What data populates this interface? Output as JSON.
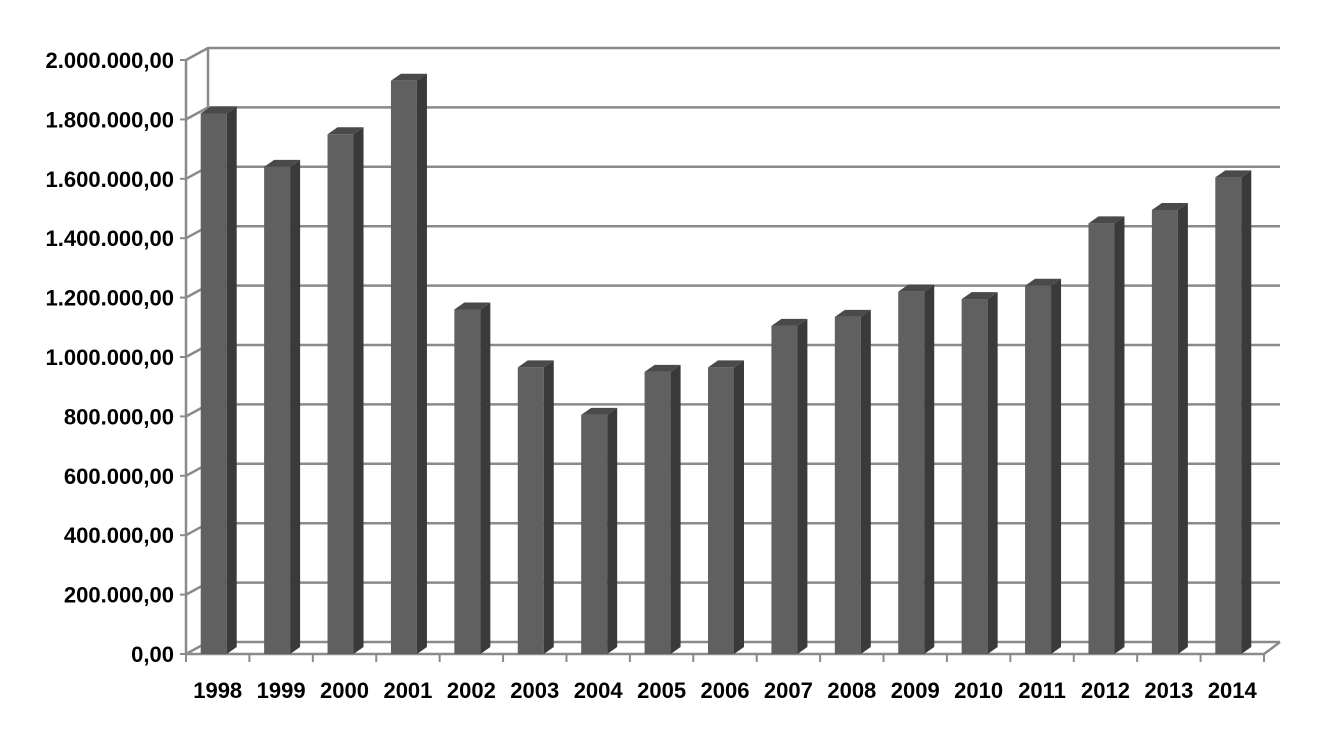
{
  "chart_data": {
    "type": "bar",
    "title": "",
    "xlabel": "",
    "ylabel": "",
    "categories": [
      "1998",
      "1999",
      "2000",
      "2001",
      "2002",
      "2003",
      "2004",
      "2005",
      "2006",
      "2007",
      "2008",
      "2009",
      "2010",
      "2011",
      "2012",
      "2013",
      "2014"
    ],
    "series": [
      {
        "values": [
          1820000,
          1640000,
          1750000,
          1930000,
          1160000,
          965000,
          805000,
          950000,
          965000,
          1105000,
          1135000,
          1220000,
          1195000,
          1240000,
          1450000,
          1495000,
          1605000
        ]
      }
    ],
    "ylim": [
      0,
      2000000
    ],
    "y_ticks": [
      {
        "value": 0,
        "label": "0,00"
      },
      {
        "value": 200000,
        "label": "200.000,00"
      },
      {
        "value": 400000,
        "label": "400.000,00"
      },
      {
        "value": 600000,
        "label": "600.000,00"
      },
      {
        "value": 800000,
        "label": "800.000,00"
      },
      {
        "value": 1000000,
        "label": "1.000.000,00"
      },
      {
        "value": 1200000,
        "label": "1.200.000,00"
      },
      {
        "value": 1400000,
        "label": "1.400.000,00"
      },
      {
        "value": 1600000,
        "label": "1.600.000,00"
      },
      {
        "value": 1800000,
        "label": "1.800.000,00"
      },
      {
        "value": 2000000,
        "label": "2.000.000,00"
      }
    ],
    "grid": true,
    "legend": "none",
    "style": "3d-column",
    "colors": {
      "bar_front": "#606060",
      "bar_side": "#3a3a3a",
      "bar_top": "#4a4a4a",
      "gridline": "#8a8a8a",
      "axis": "#8a8a8a"
    }
  }
}
